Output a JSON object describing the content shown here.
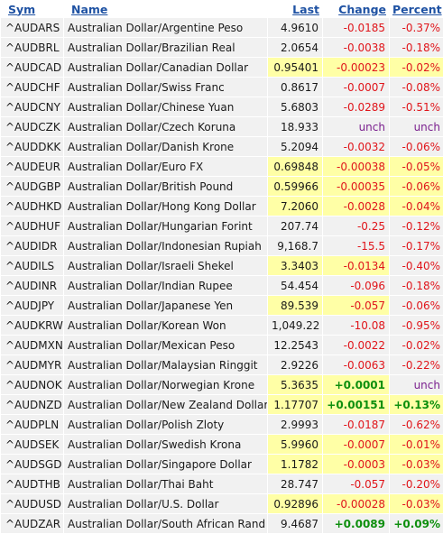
{
  "header": {
    "sym": "Sym",
    "name": "Name",
    "last": "Last",
    "change": "Change",
    "percent": "Percent"
  },
  "colors": {
    "header_link": "#1f52a3",
    "cell_bg": "#f1f1f1",
    "highlight_bg": "#ffffa6",
    "negative": "#e0151b",
    "positive": "#0e8f0e",
    "unchanged": "#7a1f8e"
  },
  "rows": [
    {
      "sym": "^AUDARS",
      "name": "Australian Dollar/Argentine Peso",
      "last": "4.9610",
      "change": "-0.0185",
      "percent": "-0.37%",
      "dir": "neg",
      "hl_last": false,
      "hl_change": false,
      "hl_pct": false
    },
    {
      "sym": "^AUDBRL",
      "name": "Australian Dollar/Brazilian Real",
      "last": "2.0654",
      "change": "-0.0038",
      "percent": "-0.18%",
      "dir": "neg",
      "hl_last": false,
      "hl_change": false,
      "hl_pct": false
    },
    {
      "sym": "^AUDCAD",
      "name": "Australian Dollar/Canadian Dollar",
      "last": "0.95401",
      "change": "-0.00023",
      "percent": "-0.02%",
      "dir": "neg",
      "hl_last": true,
      "hl_change": true,
      "hl_pct": true
    },
    {
      "sym": "^AUDCHF",
      "name": "Australian Dollar/Swiss Franc",
      "last": "0.8617",
      "change": "-0.0007",
      "percent": "-0.08%",
      "dir": "neg",
      "hl_last": false,
      "hl_change": false,
      "hl_pct": false
    },
    {
      "sym": "^AUDCNY",
      "name": "Australian Dollar/Chinese Yuan",
      "last": "5.6803",
      "change": "-0.0289",
      "percent": "-0.51%",
      "dir": "neg",
      "hl_last": false,
      "hl_change": false,
      "hl_pct": false
    },
    {
      "sym": "^AUDCZK",
      "name": "Australian Dollar/Czech Koruna",
      "last": "18.933",
      "change": "unch",
      "percent": "unch",
      "dir": "unch",
      "hl_last": false,
      "hl_change": false,
      "hl_pct": false
    },
    {
      "sym": "^AUDDKK",
      "name": "Australian Dollar/Danish Krone",
      "last": "5.2094",
      "change": "-0.0032",
      "percent": "-0.06%",
      "dir": "neg",
      "hl_last": false,
      "hl_change": false,
      "hl_pct": false
    },
    {
      "sym": "^AUDEUR",
      "name": "Australian Dollar/Euro FX",
      "last": "0.69848",
      "change": "-0.00038",
      "percent": "-0.05%",
      "dir": "neg",
      "hl_last": true,
      "hl_change": true,
      "hl_pct": true
    },
    {
      "sym": "^AUDGBP",
      "name": "Australian Dollar/British Pound",
      "last": "0.59966",
      "change": "-0.00035",
      "percent": "-0.06%",
      "dir": "neg",
      "hl_last": true,
      "hl_change": true,
      "hl_pct": true
    },
    {
      "sym": "^AUDHKD",
      "name": "Australian Dollar/Hong Kong Dollar",
      "last": "7.2060",
      "change": "-0.0028",
      "percent": "-0.04%",
      "dir": "neg",
      "hl_last": true,
      "hl_change": true,
      "hl_pct": true
    },
    {
      "sym": "^AUDHUF",
      "name": "Australian Dollar/Hungarian Forint",
      "last": "207.74",
      "change": "-0.25",
      "percent": "-0.12%",
      "dir": "neg",
      "hl_last": false,
      "hl_change": false,
      "hl_pct": false
    },
    {
      "sym": "^AUDIDR",
      "name": "Australian Dollar/Indonesian Rupiah",
      "last": "9,168.7",
      "change": "-15.5",
      "percent": "-0.17%",
      "dir": "neg",
      "hl_last": false,
      "hl_change": false,
      "hl_pct": false
    },
    {
      "sym": "^AUDILS",
      "name": "Australian Dollar/Israeli Shekel",
      "last": "3.3403",
      "change": "-0.0134",
      "percent": "-0.40%",
      "dir": "neg",
      "hl_last": true,
      "hl_change": true,
      "hl_pct": false
    },
    {
      "sym": "^AUDINR",
      "name": "Australian Dollar/Indian Rupee",
      "last": "54.454",
      "change": "-0.096",
      "percent": "-0.18%",
      "dir": "neg",
      "hl_last": false,
      "hl_change": false,
      "hl_pct": false
    },
    {
      "sym": "^AUDJPY",
      "name": "Australian Dollar/Japanese Yen",
      "last": "89.539",
      "change": "-0.057",
      "percent": "-0.06%",
      "dir": "neg",
      "hl_last": true,
      "hl_change": true,
      "hl_pct": false
    },
    {
      "sym": "^AUDKRW",
      "name": "Australian Dollar/Korean Won",
      "last": "1,049.22",
      "change": "-10.08",
      "percent": "-0.95%",
      "dir": "neg",
      "hl_last": false,
      "hl_change": false,
      "hl_pct": false
    },
    {
      "sym": "^AUDMXN",
      "name": "Australian Dollar/Mexican Peso",
      "last": "12.2543",
      "change": "-0.0022",
      "percent": "-0.02%",
      "dir": "neg",
      "hl_last": false,
      "hl_change": false,
      "hl_pct": false
    },
    {
      "sym": "^AUDMYR",
      "name": "Australian Dollar/Malaysian Ringgit",
      "last": "2.9226",
      "change": "-0.0063",
      "percent": "-0.22%",
      "dir": "neg",
      "hl_last": false,
      "hl_change": false,
      "hl_pct": false
    },
    {
      "sym": "^AUDNOK",
      "name": "Australian Dollar/Norwegian Krone",
      "last": "5.3635",
      "change": "+0.0001",
      "percent": "unch",
      "dir": "pos",
      "pct_dir": "unch",
      "hl_last": true,
      "hl_change": true,
      "hl_pct": false
    },
    {
      "sym": "^AUDNZD",
      "name": "Australian Dollar/New Zealand Dollar",
      "last": "1.17707",
      "change": "+0.00151",
      "percent": "+0.13%",
      "dir": "pos",
      "hl_last": true,
      "hl_change": true,
      "hl_pct": true
    },
    {
      "sym": "^AUDPLN",
      "name": "Australian Dollar/Polish Zloty",
      "last": "2.9993",
      "change": "-0.0187",
      "percent": "-0.62%",
      "dir": "neg",
      "hl_last": false,
      "hl_change": false,
      "hl_pct": false
    },
    {
      "sym": "^AUDSEK",
      "name": "Australian Dollar/Swedish Krona",
      "last": "5.9960",
      "change": "-0.0007",
      "percent": "-0.01%",
      "dir": "neg",
      "hl_last": true,
      "hl_change": true,
      "hl_pct": true
    },
    {
      "sym": "^AUDSGD",
      "name": "Australian Dollar/Singapore Dollar",
      "last": "1.1782",
      "change": "-0.0003",
      "percent": "-0.03%",
      "dir": "neg",
      "hl_last": true,
      "hl_change": true,
      "hl_pct": true
    },
    {
      "sym": "^AUDTHB",
      "name": "Australian Dollar/Thai Baht",
      "last": "28.747",
      "change": "-0.057",
      "percent": "-0.20%",
      "dir": "neg",
      "hl_last": false,
      "hl_change": false,
      "hl_pct": false
    },
    {
      "sym": "^AUDUSD",
      "name": "Australian Dollar/U.S. Dollar",
      "last": "0.92896",
      "change": "-0.00028",
      "percent": "-0.03%",
      "dir": "neg",
      "hl_last": true,
      "hl_change": true,
      "hl_pct": true
    },
    {
      "sym": "^AUDZAR",
      "name": "Australian Dollar/South African Rand",
      "last": "9.4687",
      "change": "+0.0089",
      "percent": "+0.09%",
      "dir": "pos",
      "hl_last": false,
      "hl_change": false,
      "hl_pct": false
    }
  ]
}
